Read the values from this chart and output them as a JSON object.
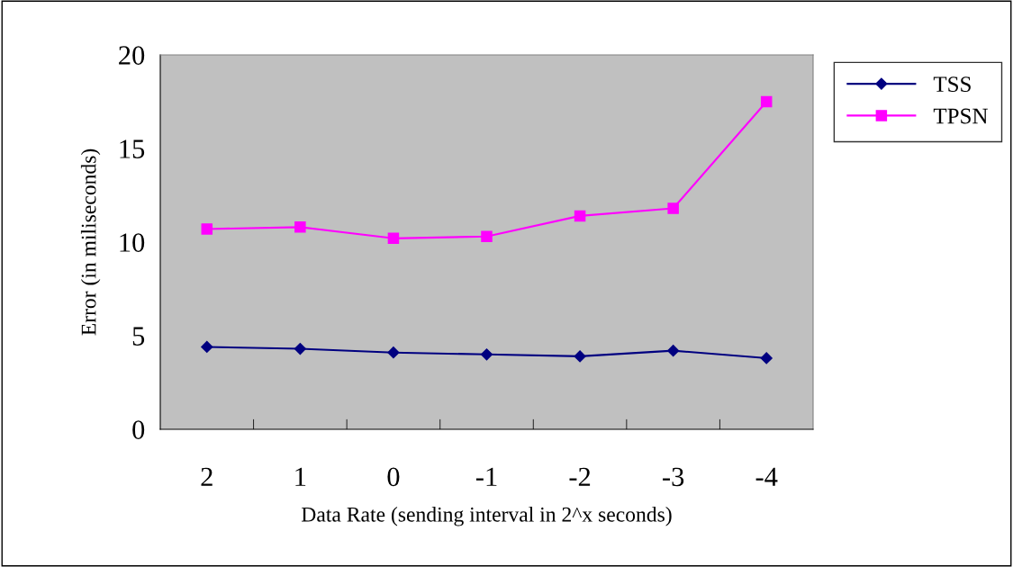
{
  "chart_data": {
    "type": "line",
    "xlabel": "Data Rate (sending interval in 2^x seconds)",
    "ylabel": "Error (in miliseconds)",
    "categories": [
      "2",
      "1",
      "0",
      "-1",
      "-2",
      "-3",
      "-4"
    ],
    "series": [
      {
        "name": "TSS",
        "color": "#000080",
        "marker": "diamond",
        "values": [
          4.4,
          4.3,
          4.1,
          4.0,
          3.9,
          4.2,
          3.8
        ]
      },
      {
        "name": "TPSN",
        "color": "#ff00ff",
        "marker": "square",
        "values": [
          10.7,
          10.8,
          10.2,
          10.3,
          11.4,
          11.8,
          17.5
        ]
      }
    ],
    "ylim": [
      0,
      20
    ],
    "yticks": [
      0,
      5,
      10,
      15,
      20
    ],
    "grid": false,
    "legend": "top right",
    "line_style": "solid"
  }
}
